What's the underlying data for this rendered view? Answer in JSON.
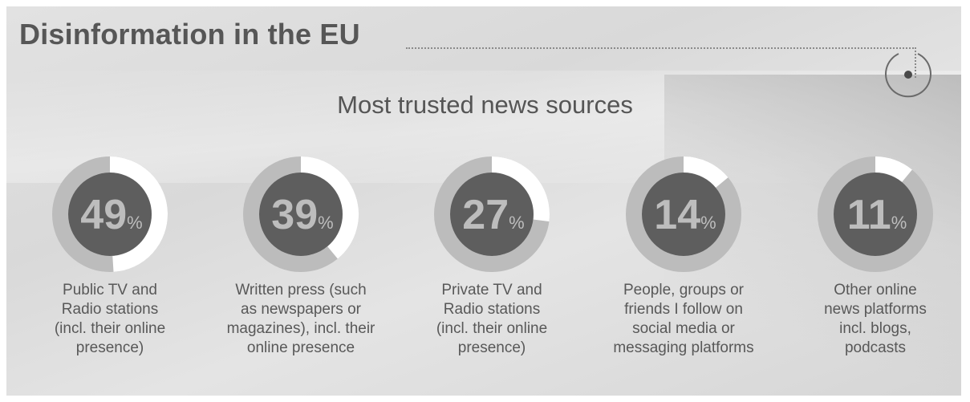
{
  "header": {
    "title": "Disinformation in the EU",
    "subtitle": "Most trusted news sources",
    "icon": "target-icon"
  },
  "colors": {
    "ring_track": "#bcbcbc",
    "ring_fill": "#ffffff",
    "disk": "#5e5e5e",
    "number": "#bdbdbd",
    "label": "#585858"
  },
  "chart_data": {
    "type": "pie",
    "title": "Most trusted news sources",
    "unit": "%",
    "categories": [
      "Public TV and Radio stations (incl. their online presence)",
      "Written press (such as newspapers or magazines), incl. their online presence",
      "Private TV and Radio stations (incl. their online presence)",
      "People, groups or friends I follow on social media or messaging platforms",
      "Other online news platforms incl. blogs, podcasts"
    ],
    "values": [
      49,
      39,
      27,
      14,
      11
    ],
    "items": [
      {
        "value": 49,
        "display": "49",
        "unit": "%",
        "label_lines": [
          "Public TV and",
          "Radio stations",
          "(incl. their online",
          "presence)"
        ]
      },
      {
        "value": 39,
        "display": "39",
        "unit": "%",
        "label_lines": [
          "Written press (such",
          "as newspapers or",
          "magazines), incl. their",
          "online presence"
        ]
      },
      {
        "value": 27,
        "display": "27",
        "unit": "%",
        "label_lines": [
          "Private TV and",
          "Radio stations",
          "(incl. their online",
          "presence)"
        ]
      },
      {
        "value": 14,
        "display": "14",
        "unit": "%",
        "label_lines": [
          "People, groups or",
          "friends I follow on",
          "social media or",
          "messaging platforms"
        ]
      },
      {
        "value": 11,
        "display": "11",
        "unit": "%",
        "label_lines": [
          "Other online",
          "news platforms",
          "incl. blogs,",
          "podcasts"
        ]
      }
    ]
  }
}
